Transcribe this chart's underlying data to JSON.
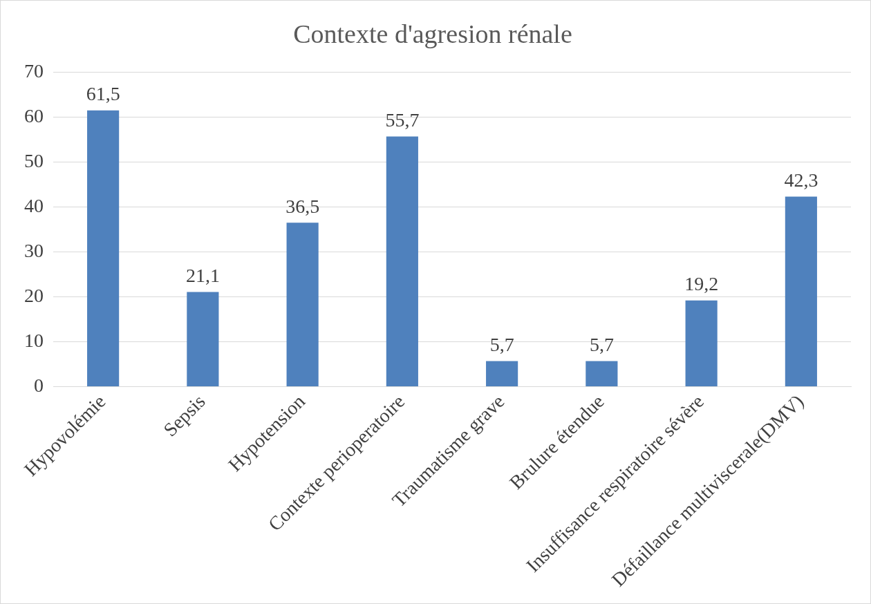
{
  "chart_data": {
    "type": "bar",
    "title": "Contexte d'agresion rénale",
    "categories": [
      "Hypovolémie",
      "Sepsis",
      "Hypotension",
      "Contexte perioperatoire",
      "Traumatisme grave",
      "Brulure étendue",
      "Insuffisance respiratoire sévère",
      "Défaillance multiviscerale(DMV)"
    ],
    "values": [
      61.5,
      21.1,
      36.5,
      55.7,
      5.7,
      5.7,
      19.2,
      42.3
    ],
    "value_labels": [
      "61,5",
      "21,1",
      "36,5",
      "55,7",
      "5,7",
      "5,7",
      "19,2",
      "42,3"
    ],
    "color": "#4f81bd",
    "ylim": [
      0,
      70
    ],
    "yticks": [
      0,
      10,
      20,
      30,
      40,
      50,
      60,
      70
    ],
    "grid": "y",
    "legend": false
  }
}
